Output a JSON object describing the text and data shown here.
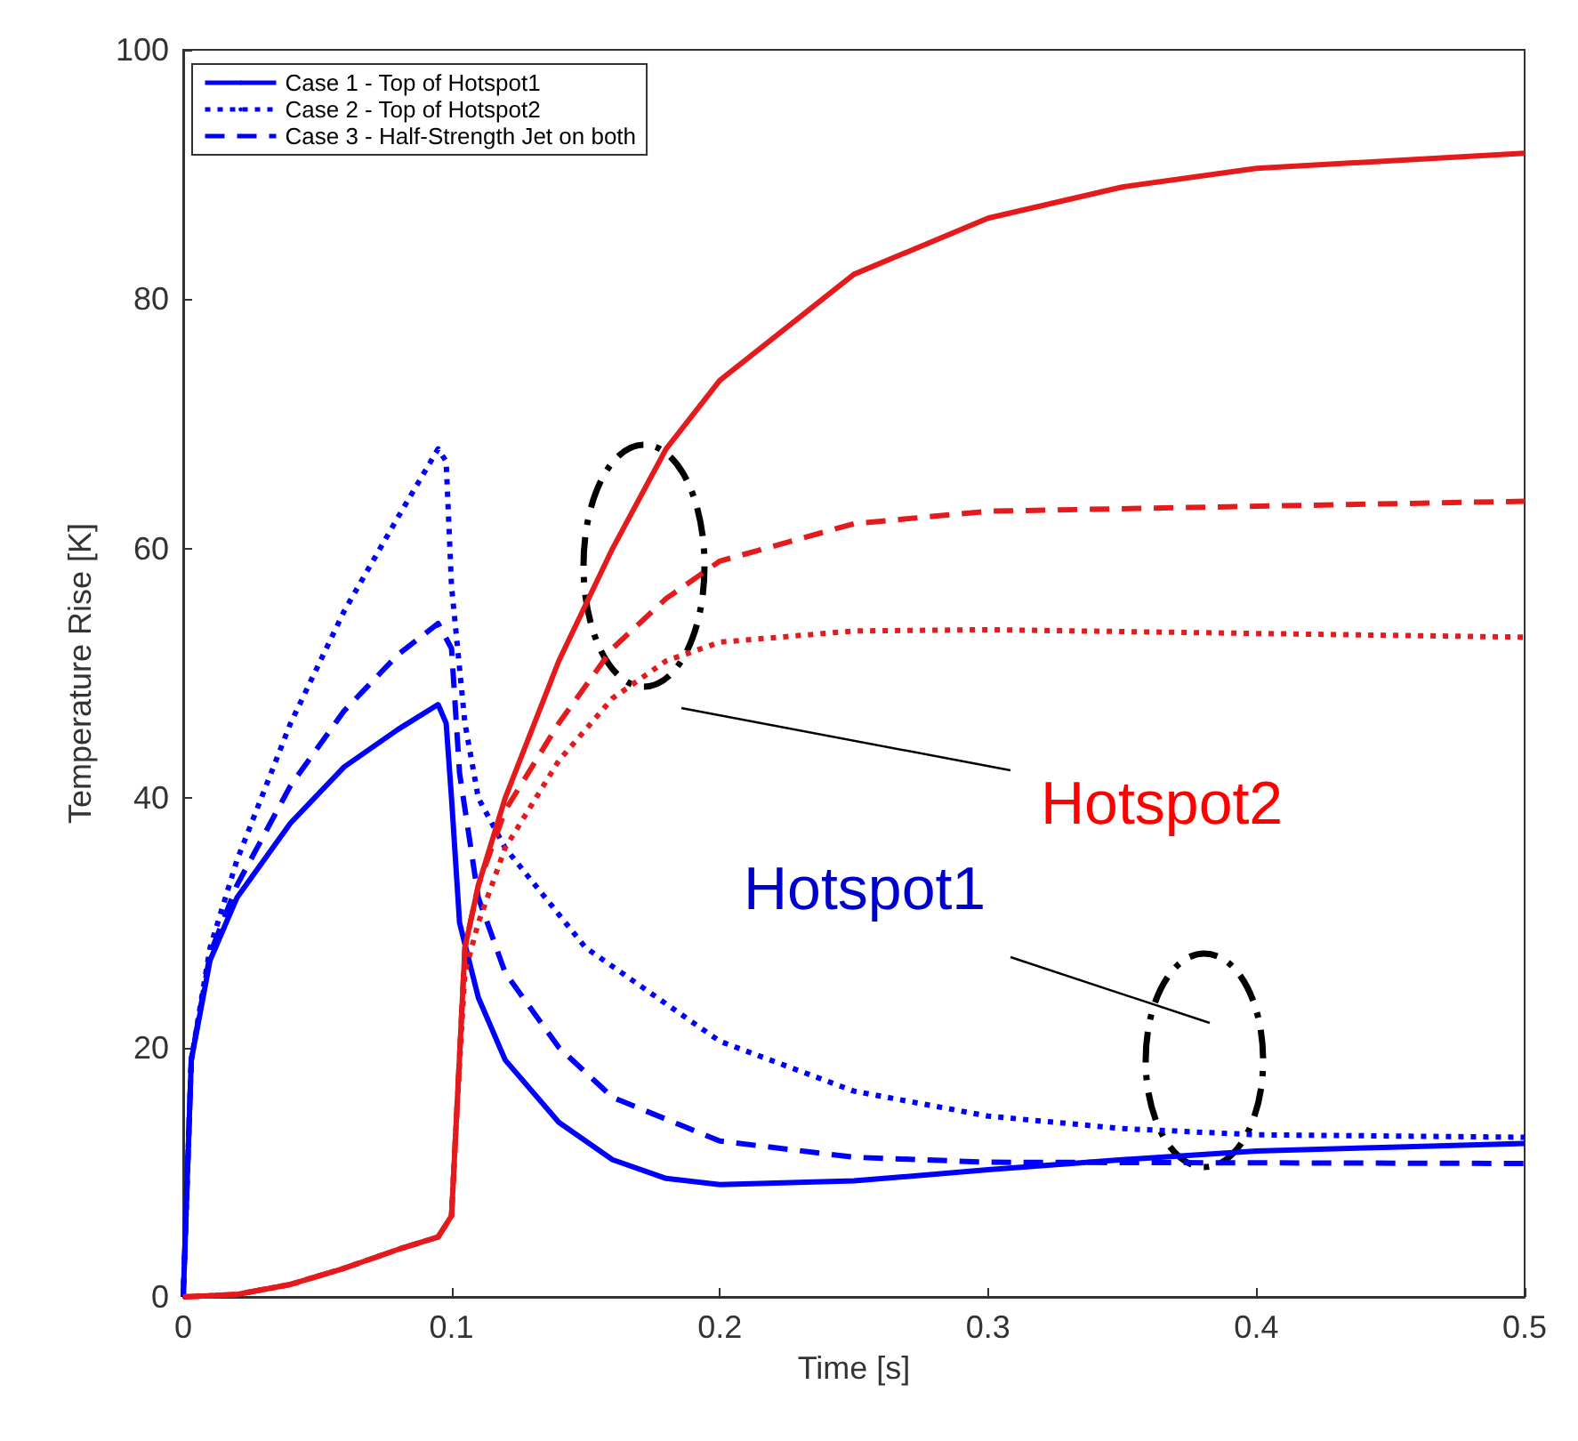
{
  "chart_data": {
    "type": "line",
    "xlabel": "Time [s]",
    "ylabel": "Temperature Rise [K]",
    "xlim": [
      0,
      0.5
    ],
    "xticks": [
      0,
      0.1,
      0.2,
      0.3,
      0.4,
      0.5
    ],
    "ylim": [
      0,
      100
    ],
    "yticks": [
      0,
      20,
      40,
      60,
      80,
      100
    ],
    "grid": false,
    "legend": "top left",
    "marker": "none",
    "series": [
      {
        "name": "Case 1 - Top of Hotspot1",
        "color": "#0000ff",
        "line_style": "solid",
        "x": [
          0,
          0.003,
          0.01,
          0.02,
          0.04,
          0.06,
          0.08,
          0.095,
          0.098,
          0.1,
          0.103,
          0.11,
          0.12,
          0.14,
          0.16,
          0.18,
          0.2,
          0.25,
          0.3,
          0.35,
          0.4,
          0.45,
          0.5
        ],
        "values": [
          0,
          19,
          27,
          32,
          38,
          42.5,
          45.5,
          47.5,
          46,
          40,
          30,
          24,
          19,
          14,
          11,
          9.5,
          9,
          9.3,
          10.2,
          11,
          11.7,
          12,
          12.3
        ]
      },
      {
        "name": "Case 2 - Top of Hotspot2",
        "color": "#0000ff",
        "line_style": "dotted",
        "x": [
          0,
          0.003,
          0.01,
          0.02,
          0.04,
          0.06,
          0.08,
          0.095,
          0.098,
          0.1,
          0.105,
          0.11,
          0.12,
          0.15,
          0.2,
          0.25,
          0.3,
          0.35,
          0.4,
          0.5
        ],
        "values": [
          0,
          19,
          28,
          35,
          46,
          55,
          62.5,
          68,
          67,
          57,
          46,
          40,
          36,
          28,
          20.5,
          16.5,
          14.5,
          13.5,
          13,
          12.8
        ]
      },
      {
        "name": "Case 3 - Half-Strength Jet on both",
        "color": "#0000ff",
        "line_style": "dashed",
        "x": [
          0,
          0.003,
          0.01,
          0.02,
          0.04,
          0.06,
          0.08,
          0.095,
          0.1,
          0.103,
          0.11,
          0.12,
          0.14,
          0.16,
          0.2,
          0.25,
          0.3,
          0.5
        ],
        "values": [
          0,
          19,
          27.5,
          33,
          41,
          47,
          51.5,
          54,
          52,
          42,
          32,
          26,
          20,
          16,
          12.5,
          11.2,
          10.8,
          10.7
        ]
      },
      {
        "color": "#e41a1c",
        "line_style": "solid",
        "x": [
          0,
          0.02,
          0.04,
          0.06,
          0.08,
          0.095,
          0.1,
          0.102,
          0.105,
          0.11,
          0.12,
          0.14,
          0.16,
          0.18,
          0.2,
          0.25,
          0.3,
          0.35,
          0.4,
          0.5
        ],
        "values": [
          0,
          0.2,
          1,
          2.3,
          3.8,
          4.8,
          6.5,
          15,
          28,
          33,
          40,
          51,
          60,
          68,
          73.5,
          82,
          86.5,
          89,
          90.5,
          91.7
        ]
      },
      {
        "color": "#e41a1c",
        "line_style": "dotted",
        "x": [
          0,
          0.02,
          0.04,
          0.06,
          0.08,
          0.095,
          0.1,
          0.102,
          0.105,
          0.11,
          0.12,
          0.14,
          0.16,
          0.18,
          0.2,
          0.25,
          0.3,
          0.4,
          0.5
        ],
        "values": [
          0,
          0.2,
          1,
          2.3,
          3.8,
          4.8,
          6.5,
          15,
          26,
          30,
          36,
          43,
          48,
          51,
          52.5,
          53.4,
          53.5,
          53.2,
          52.9
        ]
      },
      {
        "color": "#e41a1c",
        "line_style": "dashed",
        "x": [
          0,
          0.02,
          0.04,
          0.06,
          0.08,
          0.095,
          0.1,
          0.102,
          0.105,
          0.11,
          0.12,
          0.14,
          0.16,
          0.18,
          0.2,
          0.25,
          0.3,
          0.5
        ],
        "values": [
          0,
          0.2,
          1,
          2.3,
          3.8,
          4.8,
          6.5,
          15,
          28,
          33,
          39,
          46,
          52,
          56,
          59,
          62,
          63,
          63.8
        ]
      }
    ],
    "annotations": [
      "Hotspot2",
      "Hotspot1"
    ]
  }
}
